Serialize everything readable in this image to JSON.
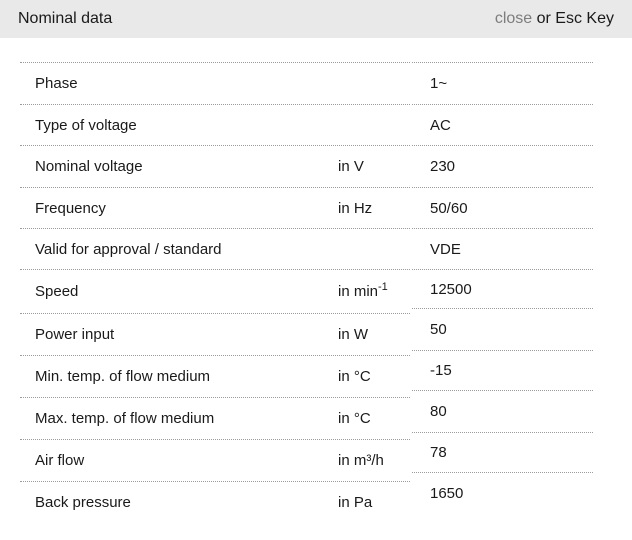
{
  "header": {
    "title": "Nominal data",
    "close_label": "close",
    "close_suffix": " or Esc Key"
  },
  "colors": {
    "header_bg": "#e9e9e9",
    "text": "#1a1a1a",
    "close_link": "#7d7d7d",
    "divider": "#9b9b9b"
  },
  "table": {
    "rows": [
      {
        "label": "Phase",
        "unit": "",
        "unit_sup": "",
        "value": "1~"
      },
      {
        "label": "Type of voltage",
        "unit": "",
        "unit_sup": "",
        "value": "AC"
      },
      {
        "label": "Nominal voltage",
        "unit": "in V",
        "unit_sup": "",
        "value": "230"
      },
      {
        "label": "Frequency",
        "unit": "in Hz",
        "unit_sup": "",
        "value": "50/60"
      },
      {
        "label": "Valid for approval / standard",
        "unit": "",
        "unit_sup": "",
        "value": "VDE"
      },
      {
        "label": "Speed",
        "unit": "in min",
        "unit_sup": "-1",
        "value": "12500"
      },
      {
        "label": "Power input",
        "unit": "in W",
        "unit_sup": "",
        "value": "50"
      },
      {
        "label": "Min. temp. of flow medium",
        "unit": "in °C",
        "unit_sup": "",
        "value": "-15"
      },
      {
        "label": "Max. temp. of flow medium",
        "unit": "in °C",
        "unit_sup": "",
        "value": "80"
      },
      {
        "label": "Air flow",
        "unit": "in m³/h",
        "unit_sup": "",
        "value": "78"
      },
      {
        "label": "Back pressure",
        "unit": "in Pa",
        "unit_sup": "",
        "value": "1650"
      }
    ]
  }
}
